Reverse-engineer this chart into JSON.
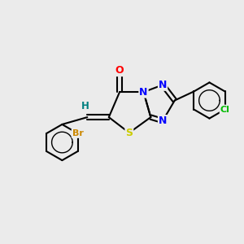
{
  "background_color": "#ebebeb",
  "bond_color": "#000000",
  "atom_colors": {
    "O": "#ff0000",
    "N": "#0000ff",
    "S": "#cccc00",
    "Br": "#cc8800",
    "Cl": "#00bb00",
    "H": "#008080",
    "C": "#000000"
  },
  "figsize": [
    3.0,
    3.0
  ],
  "dpi": 100
}
